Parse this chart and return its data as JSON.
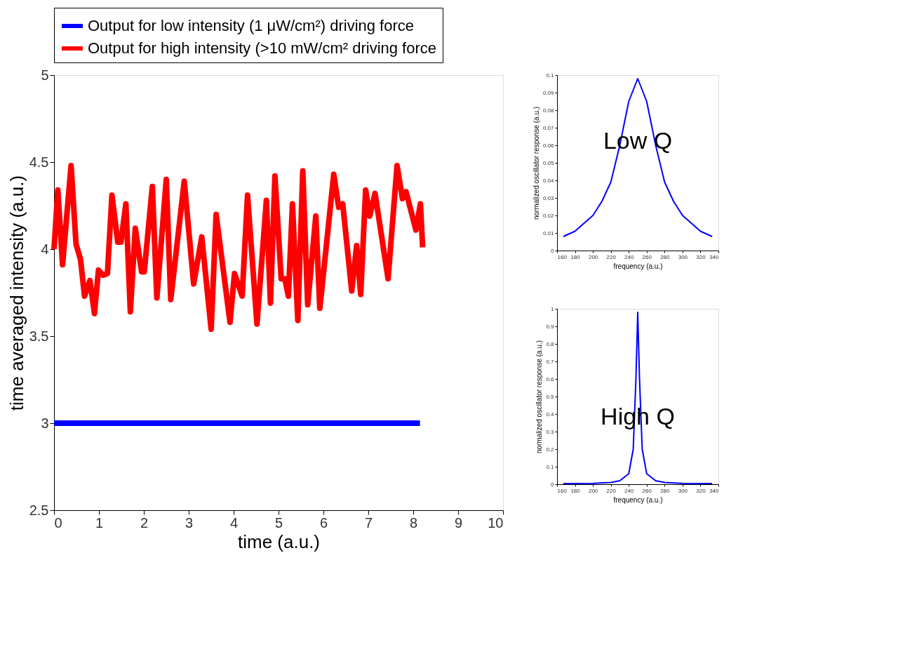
{
  "chart_data": [
    {
      "type": "line",
      "xlabel": "time (a.u.)",
      "ylabel": "time averaged intensity (a.u.)",
      "xlim": [
        0,
        10
      ],
      "ylim": [
        2.5,
        5
      ],
      "xticks": [
        0,
        1,
        2,
        3,
        4,
        5,
        6,
        7,
        8,
        9,
        10
      ],
      "yticks": [
        2.5,
        3,
        3.5,
        4,
        4.5,
        5
      ],
      "legend": "top",
      "series": [
        {
          "name": "Output for low intensity (1 μW/cm²) driving force",
          "color": "#0000ff",
          "x": [
            0,
            8.15
          ],
          "values": [
            3,
            3
          ]
        },
        {
          "name": "Output for high intensity (>10 mW/cm² driving force",
          "color": "#ff0000",
          "x": [
            0,
            0.085,
            0.19,
            0.38,
            0.49,
            0.59,
            0.68,
            0.8,
            0.9,
            0.99,
            1.09,
            1.19,
            1.29,
            1.42,
            1.49,
            1.6,
            1.7,
            1.81,
            1.95,
            2.01,
            2.19,
            2.29,
            2.5,
            2.6,
            2.9,
            3.11,
            3.29,
            3.5,
            3.61,
            3.92,
            4.02,
            4.19,
            4.31,
            4.52,
            4.73,
            4.82,
            4.92,
            5.06,
            5.14,
            5.22,
            5.31,
            5.43,
            5.54,
            5.65,
            5.83,
            5.92,
            6.23,
            6.34,
            6.43,
            6.63,
            6.74,
            6.83,
            6.94,
            7.03,
            7.15,
            7.44,
            7.64,
            7.76,
            7.84,
            8.06,
            8.16,
            8.21
          ],
          "values": [
            4.0,
            4.34,
            3.91,
            4.48,
            4.03,
            3.94,
            3.73,
            3.82,
            3.63,
            3.88,
            3.85,
            3.86,
            4.31,
            4.04,
            4.04,
            4.26,
            3.64,
            4.12,
            3.87,
            3.87,
            4.36,
            3.72,
            4.4,
            3.71,
            4.39,
            3.8,
            4.07,
            3.54,
            4.2,
            3.58,
            3.86,
            3.73,
            4.31,
            3.57,
            4.28,
            3.69,
            4.42,
            3.83,
            3.83,
            3.73,
            4.26,
            3.59,
            4.45,
            3.68,
            4.19,
            3.66,
            4.43,
            4.24,
            4.26,
            3.76,
            4.02,
            3.74,
            4.34,
            4.19,
            4.32,
            3.83,
            4.48,
            4.29,
            4.33,
            4.11,
            4.26,
            4.01
          ]
        }
      ]
    },
    {
      "type": "line",
      "xlabel": "frequency (a.u.)",
      "ylabel": "normalized oscillator response (a.u.)",
      "xlim": [
        160,
        340
      ],
      "ylim": [
        0,
        0.1
      ],
      "xticks": [
        160,
        180,
        200,
        220,
        240,
        260,
        280,
        300,
        320,
        340
      ],
      "yticks": [
        0,
        0.01,
        0.02,
        0.03,
        0.04,
        0.05,
        0.06,
        0.07,
        0.08,
        0.09,
        0.1
      ],
      "annotations": [
        "Low Q"
      ],
      "series": [
        {
          "color": "#0000ff",
          "x": [
            167,
            180,
            200,
            210,
            220,
            230,
            240,
            250,
            260,
            270,
            280,
            290,
            300,
            320,
            333
          ],
          "values": [
            0.008,
            0.011,
            0.02,
            0.028,
            0.039,
            0.06,
            0.085,
            0.098,
            0.085,
            0.06,
            0.039,
            0.028,
            0.02,
            0.011,
            0.008
          ]
        }
      ]
    },
    {
      "type": "line",
      "xlabel": "frequency (a.u.)",
      "ylabel": "normalized oscillator response (a.u.)",
      "xlim": [
        160,
        340
      ],
      "ylim": [
        0,
        1
      ],
      "xticks": [
        160,
        180,
        200,
        220,
        240,
        260,
        280,
        300,
        320,
        340
      ],
      "yticks": [
        0,
        0.1,
        0.2,
        0.3,
        0.4,
        0.5,
        0.6,
        0.7,
        0.8,
        0.9,
        1
      ],
      "annotations": [
        "High Q"
      ],
      "series": [
        {
          "color": "#0000ff",
          "x": [
            167,
            200,
            220,
            230,
            240,
            245,
            248,
            250,
            252,
            255,
            260,
            270,
            280,
            300,
            333
          ],
          "values": [
            0.004,
            0.005,
            0.01,
            0.02,
            0.06,
            0.2,
            0.6,
            0.98,
            0.6,
            0.2,
            0.06,
            0.02,
            0.01,
            0.005,
            0.004
          ]
        }
      ]
    }
  ]
}
